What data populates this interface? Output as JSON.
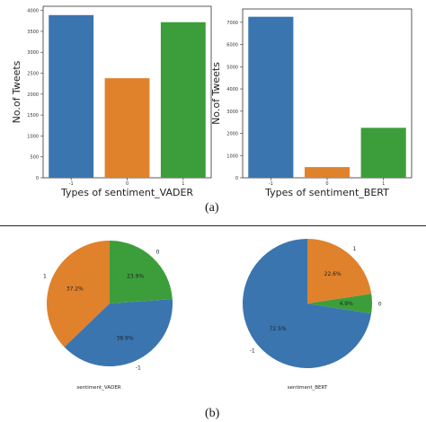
{
  "captions": {
    "a": "(a)",
    "b": "(b)"
  },
  "colors": {
    "blue": "#3a75b0",
    "orange": "#e0812c",
    "green": "#3b9e3b"
  },
  "chart_data": [
    {
      "type": "bar",
      "categories": [
        "-1",
        "0",
        "1"
      ],
      "values": [
        3890,
        2380,
        3720
      ],
      "ylabel": "No.of Tweets",
      "xlabel": "Types of  sentiment_VADER",
      "yticks": [
        0,
        500,
        1000,
        1500,
        2000,
        2500,
        3000,
        3500,
        4000
      ],
      "ylim": [
        0,
        4100
      ]
    },
    {
      "type": "bar",
      "categories": [
        "-1",
        "0",
        "1"
      ],
      "values": [
        7250,
        480,
        2250
      ],
      "ylabel": "No.of Tweets",
      "xlabel": "Types of  sentiment_BERT",
      "yticks": [
        0,
        1000,
        2000,
        3000,
        4000,
        5000,
        6000,
        7000
      ],
      "ylim": [
        0,
        7600
      ]
    },
    {
      "type": "pie",
      "xlabel": "sentiment_VADER",
      "slices": [
        {
          "label": "1",
          "percent_label": "37.2%",
          "value": 37.2,
          "color": "#e0812c"
        },
        {
          "label": "-1",
          "percent_label": "38.9%",
          "value": 38.9,
          "color": "#3a75b0"
        },
        {
          "label": "0",
          "percent_label": "23.9%",
          "value": 23.9,
          "color": "#3b9e3b"
        }
      ]
    },
    {
      "type": "pie",
      "xlabel": "sentiment_BERT",
      "slices": [
        {
          "label": "-1",
          "percent_label": "72.5%",
          "value": 72.5,
          "color": "#3a75b0"
        },
        {
          "label": "0",
          "percent_label": "4.9%",
          "value": 4.9,
          "color": "#3b9e3b"
        },
        {
          "label": "1",
          "percent_label": "22.6%",
          "value": 22.6,
          "color": "#e0812c"
        }
      ]
    }
  ]
}
